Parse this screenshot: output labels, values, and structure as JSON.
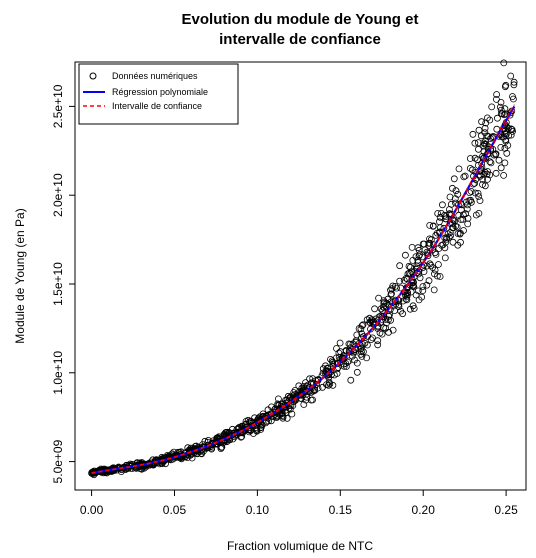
{
  "chart_data": {
    "type": "scatter",
    "title": [
      "Evolution du module de Young et",
      "intervalle de confiance"
    ],
    "xlabel": "Fraction volumique de NTC",
    "ylabel": "Module de Young (en Pa)",
    "xlim": [
      -0.01,
      0.262
    ],
    "ylim": [
      3400000000.0,
      27500000000.0
    ],
    "x_ticks": [
      0.0,
      0.05,
      0.1,
      0.15,
      0.2,
      0.25
    ],
    "x_tick_labels": [
      "0.00",
      "0.05",
      "0.10",
      "0.15",
      "0.20",
      "0.25"
    ],
    "y_ticks": [
      5000000000.0,
      10000000000.0,
      15000000000.0,
      20000000000.0,
      25000000000.0
    ],
    "y_tick_labels": [
      "5.0e+09",
      "1.0e+10",
      "1.5e+10",
      "2.0e+10",
      "2.5e+10"
    ],
    "grid": false,
    "legend_position": "top-left",
    "series": [
      {
        "name": "Données numériques",
        "kind": "points",
        "marker": "open-circle",
        "color": "#000000",
        "count": 1000,
        "x_range": [
          0.0,
          0.255
        ],
        "trend": {
          "y0": 4350000000.0,
          "y1": 25000000000.0,
          "shape": "convex"
        },
        "relative_spread": 0.06
      },
      {
        "name": "Régression polynomiale",
        "kind": "line",
        "color": "#0000ff",
        "x": [
          0.0,
          0.05,
          0.1,
          0.15,
          0.2,
          0.25,
          0.255
        ],
        "y": [
          4350000000.0,
          5250000000.0,
          7200000000.0,
          10600000000.0,
          16200000000.0,
          24200000000.0,
          25000000000.0
        ]
      },
      {
        "name": "Intervalle de confiance",
        "kind": "line",
        "style": "dashed",
        "color": "#ff0000",
        "x": [
          0.0,
          0.05,
          0.1,
          0.15,
          0.2,
          0.25,
          0.255
        ],
        "y_lower": [
          4330000000.0,
          5230000000.0,
          7170000000.0,
          10550000000.0,
          16150000000.0,
          24100000000.0,
          24900000000.0
        ],
        "y_upper": [
          4370000000.0,
          5270000000.0,
          7230000000.0,
          10650000000.0,
          16250000000.0,
          24300000000.0,
          25100000000.0
        ]
      }
    ]
  }
}
